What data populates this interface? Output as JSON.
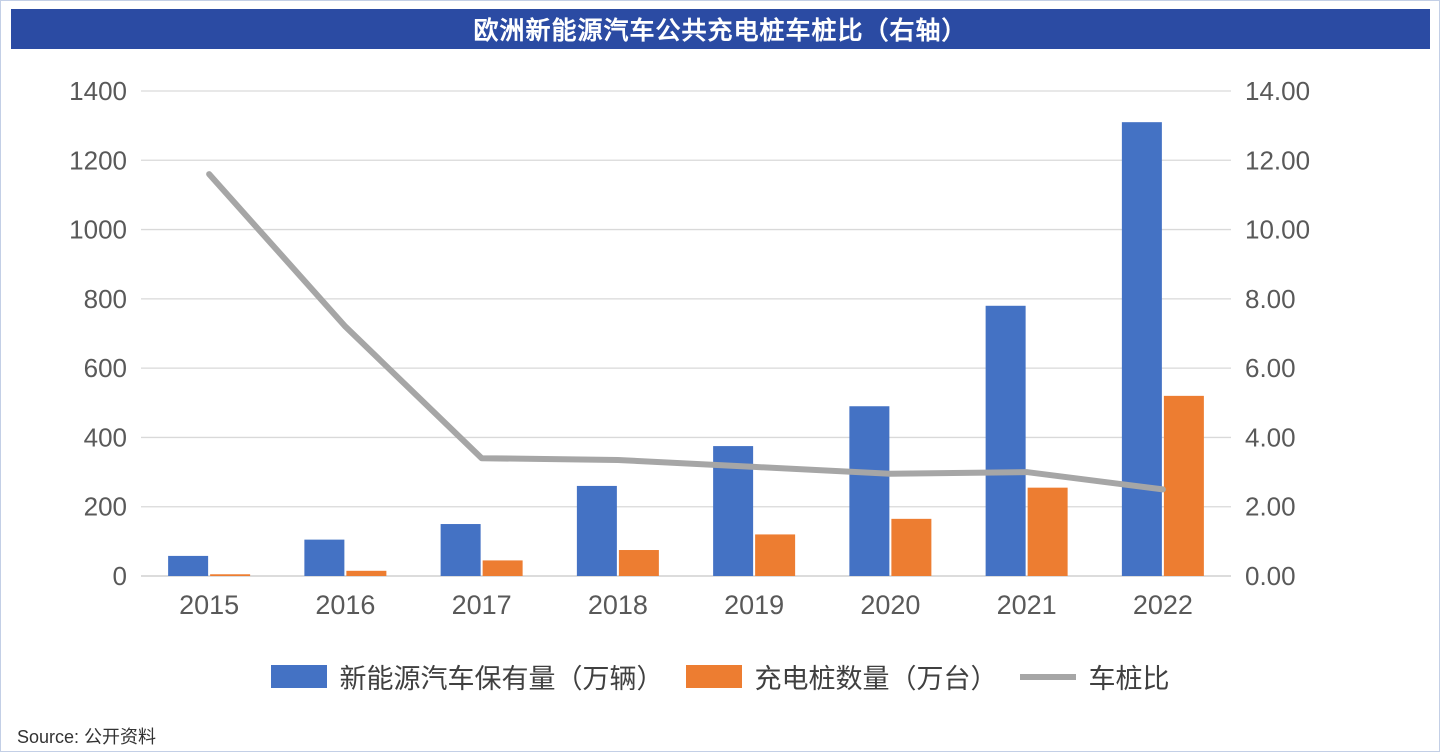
{
  "title_bar": {
    "bg_color": "#2b4ba3",
    "text_color": "#ffffff"
  },
  "source": "Source:  公开资料",
  "chart_data": {
    "type": "combo",
    "title": "欧洲新能源汽车公共充电桩车桩比（右轴）",
    "categories": [
      "2015",
      "2016",
      "2017",
      "2018",
      "2019",
      "2020",
      "2021",
      "2022"
    ],
    "series": [
      {
        "name": "新能源汽车保有量（万辆）",
        "type": "bar",
        "axis": "left",
        "color": "#4472c4",
        "values": [
          58,
          105,
          150,
          260,
          375,
          490,
          780,
          1310
        ]
      },
      {
        "name": "充电桩数量（万台）",
        "type": "bar",
        "axis": "left",
        "color": "#ed7d31",
        "values": [
          5,
          15,
          45,
          75,
          120,
          165,
          255,
          520
        ]
      },
      {
        "name": "车桩比",
        "type": "line",
        "axis": "right",
        "color": "#a6a6a6",
        "values": [
          11.6,
          7.2,
          3.4,
          3.35,
          3.15,
          2.95,
          3.0,
          2.5
        ]
      }
    ],
    "left_axis": {
      "min": 0,
      "max": 1400,
      "step": 200,
      "ticks": [
        "0",
        "200",
        "400",
        "600",
        "800",
        "1000",
        "1200",
        "1400"
      ]
    },
    "right_axis": {
      "min": 0,
      "max": 14,
      "step": 2,
      "ticks": [
        "0.00",
        "2.00",
        "4.00",
        "6.00",
        "8.00",
        "10.00",
        "12.00",
        "14.00"
      ]
    },
    "grid": true,
    "gridline_color": "#d9d9d9",
    "axis_text_color": "#595959",
    "legend_position": "bottom"
  }
}
